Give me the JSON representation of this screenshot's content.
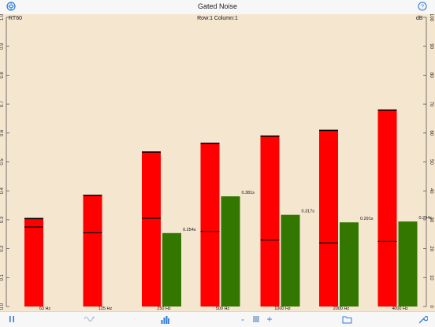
{
  "window": {
    "title": "Gated Noise"
  },
  "header": {
    "settings_icon": "gear-icon",
    "help_icon": "question-icon"
  },
  "chart_overlay": {
    "left_unit": "RT60",
    "right_unit": "dB",
    "cell_position": "Row:1 Column:1"
  },
  "toolbar": {
    "pause_icon": "pause-icon",
    "wave_icon": "waveform-icon",
    "bars_icon": "bar-chart-icon",
    "minus_label": "-",
    "plus_label": "+",
    "folder_icon": "folder-icon",
    "tools_icon": "wrench-icon",
    "accent_color": "#2f7bd8"
  },
  "chart_data": {
    "type": "bar",
    "categories": [
      "63 Hz",
      "125 Hz",
      "250 Hz",
      "500 Hz",
      "1000 Hz",
      "2000 Hz",
      "4000 Hz"
    ],
    "series": [
      {
        "color": "#ff0000",
        "axis": "right",
        "values": [
          30.5,
          38.5,
          53.5,
          56.5,
          59,
          61,
          68
        ]
      },
      {
        "color": "#337700",
        "axis": "left",
        "values": [
          null,
          null,
          0.254,
          0.381,
          0.317,
          0.291,
          0.294
        ]
      }
    ],
    "marker_values": [
      27.5,
      25.5,
      30.5,
      26,
      23,
      22,
      22.5
    ],
    "value_labels": [
      "",
      "",
      "0.254s",
      "0.381s",
      "0.317s",
      "0.291s",
      "0.294s"
    ],
    "left_axis": {
      "min": 0,
      "max": 1,
      "ticks": [
        "0.0",
        "0.1",
        "0.2",
        "0.3",
        "0.4",
        "0.5",
        "0.6",
        "0.7",
        "0.8",
        "0.9",
        "1.0"
      ]
    },
    "right_axis": {
      "min": 0,
      "max": 100,
      "ticks": [
        "0",
        "10",
        "20",
        "30",
        "40",
        "50",
        "60",
        "70",
        "80",
        "90",
        "100"
      ]
    },
    "background": "#f5e6d0",
    "grid": false
  }
}
